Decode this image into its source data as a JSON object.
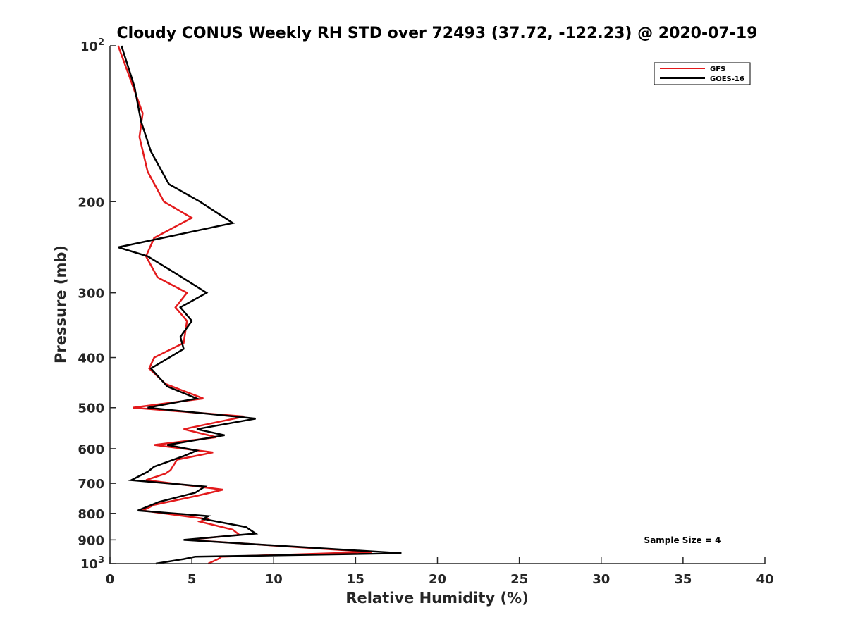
{
  "chart_data": {
    "type": "line",
    "title": "Cloudy CONUS Weekly RH STD over 72493 (37.72, -122.23) @ 2020-07-19",
    "xlabel": "Relative Humidity (%)",
    "ylabel": "Pressure (mb)",
    "xlim": [
      0,
      40
    ],
    "ylim": [
      100,
      1000
    ],
    "y_scale": "log",
    "y_reversed": true,
    "x_ticks": [
      0,
      5,
      10,
      15,
      20,
      25,
      30,
      35,
      40
    ],
    "x_tick_labels": [
      "0",
      "5",
      "10",
      "15",
      "20",
      "25",
      "30",
      "35",
      "40"
    ],
    "y_ticks": [
      100,
      200,
      300,
      400,
      500,
      600,
      700,
      800,
      900,
      1000
    ],
    "y_tick_labels": [
      {
        "base": "10",
        "exp": "2"
      },
      {
        "base": "200",
        "exp": ""
      },
      {
        "base": "300",
        "exp": ""
      },
      {
        "base": "400",
        "exp": ""
      },
      {
        "base": "500",
        "exp": ""
      },
      {
        "base": "600",
        "exp": ""
      },
      {
        "base": "700",
        "exp": ""
      },
      {
        "base": "800",
        "exp": ""
      },
      {
        "base": "900",
        "exp": ""
      },
      {
        "base": "10",
        "exp": "3"
      }
    ],
    "grid": false,
    "legend_position": "top-right",
    "series": [
      {
        "name": "GFS",
        "color": "#e31a1c",
        "points": [
          [
            0.5,
            100
          ],
          [
            1.2,
            115
          ],
          [
            2.0,
            135
          ],
          [
            1.8,
            150
          ],
          [
            2.3,
            175
          ],
          [
            3.3,
            200
          ],
          [
            5.0,
            215
          ],
          [
            2.7,
            235
          ],
          [
            2.2,
            255
          ],
          [
            2.9,
            280
          ],
          [
            4.7,
            300
          ],
          [
            4.0,
            320
          ],
          [
            4.7,
            340
          ],
          [
            4.5,
            375
          ],
          [
            2.7,
            400
          ],
          [
            2.4,
            420
          ],
          [
            3.4,
            450
          ],
          [
            5.7,
            480
          ],
          [
            1.4,
            500
          ],
          [
            8.2,
            520
          ],
          [
            4.5,
            550
          ],
          [
            6.5,
            570
          ],
          [
            2.7,
            590
          ],
          [
            6.3,
            610
          ],
          [
            4.1,
            630
          ],
          [
            3.7,
            660
          ],
          [
            3.4,
            670
          ],
          [
            2.2,
            690
          ],
          [
            6.9,
            720
          ],
          [
            5.3,
            740
          ],
          [
            2.7,
            770
          ],
          [
            2.0,
            790
          ],
          [
            5.9,
            820
          ],
          [
            5.5,
            830
          ],
          [
            7.5,
            860
          ],
          [
            7.9,
            880
          ],
          [
            4.7,
            900
          ],
          [
            16.0,
            950
          ],
          [
            6.8,
            970
          ],
          [
            6.6,
            980
          ],
          [
            6.0,
            1000
          ]
        ]
      },
      {
        "name": "GOES-16",
        "color": "#000000",
        "points": [
          [
            0.7,
            100
          ],
          [
            1.5,
            120
          ],
          [
            1.9,
            140
          ],
          [
            2.5,
            160
          ],
          [
            3.6,
            185
          ],
          [
            5.5,
            200
          ],
          [
            7.5,
            220
          ],
          [
            0.5,
            245
          ],
          [
            2.3,
            255
          ],
          [
            4.0,
            275
          ],
          [
            5.9,
            300
          ],
          [
            4.3,
            320
          ],
          [
            5.0,
            340
          ],
          [
            4.3,
            365
          ],
          [
            4.5,
            385
          ],
          [
            2.5,
            420
          ],
          [
            3.5,
            455
          ],
          [
            5.3,
            480
          ],
          [
            2.3,
            500
          ],
          [
            8.9,
            525
          ],
          [
            5.3,
            550
          ],
          [
            7.0,
            565
          ],
          [
            3.5,
            590
          ],
          [
            5.3,
            605
          ],
          [
            4.5,
            620
          ],
          [
            2.7,
            650
          ],
          [
            2.3,
            665
          ],
          [
            1.3,
            690
          ],
          [
            5.8,
            710
          ],
          [
            5.2,
            730
          ],
          [
            3.0,
            760
          ],
          [
            1.7,
            790
          ],
          [
            6.0,
            810
          ],
          [
            5.7,
            820
          ],
          [
            8.3,
            850
          ],
          [
            8.9,
            875
          ],
          [
            4.5,
            900
          ],
          [
            17.8,
            955
          ],
          [
            5.2,
            970
          ],
          [
            4.5,
            980
          ],
          [
            2.8,
            1000
          ]
        ]
      }
    ],
    "annotation": "Sample Size = 4"
  }
}
